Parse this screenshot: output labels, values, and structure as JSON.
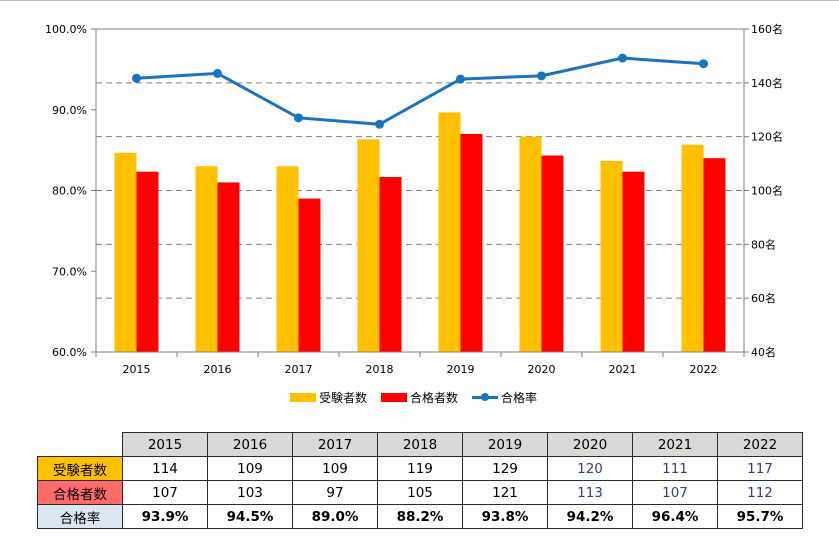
{
  "chart_data": {
    "type": "bar+line",
    "categories": [
      "2015",
      "2016",
      "2017",
      "2018",
      "2019",
      "2020",
      "2021",
      "2022"
    ],
    "series": [
      {
        "name": "受験者数",
        "type": "bar",
        "axis": "right",
        "color": "#ffc000",
        "values": [
          114,
          109,
          109,
          119,
          129,
          120,
          111,
          117
        ]
      },
      {
        "name": "合格者数",
        "type": "bar",
        "axis": "right",
        "color": "#ff0000",
        "values": [
          107,
          103,
          97,
          105,
          121,
          113,
          107,
          112
        ]
      },
      {
        "name": "合格率",
        "type": "line",
        "axis": "left",
        "color": "#1a73c0",
        "values": [
          93.9,
          94.5,
          89.0,
          88.2,
          93.8,
          94.2,
          96.4,
          95.7
        ]
      }
    ],
    "left_axis": {
      "ylim": [
        60,
        100
      ],
      "ticks": [
        "60.0%",
        "70.0%",
        "80.0%",
        "90.0%",
        "100.0%"
      ]
    },
    "right_axis": {
      "ylim": [
        40,
        160
      ],
      "ticks": [
        "40名",
        "60名",
        "80名",
        "100名",
        "120名",
        "140名",
        "160名"
      ]
    },
    "grid": true,
    "legend": "bottom-center"
  },
  "table": {
    "years": [
      "2015",
      "2016",
      "2017",
      "2018",
      "2019",
      "2020",
      "2021",
      "2022"
    ],
    "rows": [
      {
        "label": "受験者数",
        "color": "#ffc000",
        "values": [
          "114",
          "109",
          "109",
          "119",
          "129",
          "120",
          "111",
          "117"
        ]
      },
      {
        "label": "合格者数",
        "color": "#ff6b6b",
        "values": [
          "107",
          "103",
          "97",
          "105",
          "121",
          "113",
          "107",
          "112"
        ]
      },
      {
        "label": "合格率",
        "color": "#dce6f1",
        "values": [
          "93.9%",
          "94.5%",
          "89.0%",
          "88.2%",
          "93.8%",
          "94.2%",
          "96.4%",
          "95.7%"
        ]
      }
    ]
  }
}
